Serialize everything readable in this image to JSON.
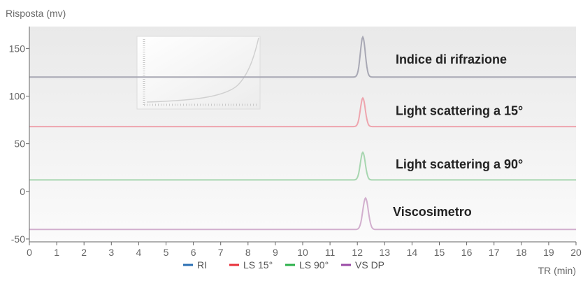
{
  "chart_data": {
    "type": "line",
    "title": "",
    "ylabel": "Risposta (mv)",
    "xlabel": "TR (min)",
    "xlim": [
      0,
      20
    ],
    "ylim": [
      -53,
      173
    ],
    "x_ticks": [
      0,
      1,
      2,
      3,
      4,
      5,
      6,
      7,
      8,
      9,
      10,
      11,
      12,
      13,
      14,
      15,
      16,
      17,
      18,
      19,
      20
    ],
    "y_ticks": [
      -50,
      0,
      50,
      100,
      150
    ],
    "series": [
      {
        "name": "RI",
        "color": "#2a6fb3",
        "trace_color": "#a8a8b4",
        "baseline": 120,
        "peak_x": 12.2,
        "peak_height": 42,
        "peak_width": 0.09
      },
      {
        "name": "LS 15°",
        "color": "#e8303a",
        "trace_color": "#eea5ae",
        "baseline": 68,
        "peak_x": 12.2,
        "peak_height": 30,
        "peak_width": 0.09
      },
      {
        "name": "LS 90°",
        "color": "#2bb14a",
        "trace_color": "#a7d6b0",
        "baseline": 12,
        "peak_x": 12.2,
        "peak_height": 29,
        "peak_width": 0.09
      },
      {
        "name": "VS DP",
        "color": "#9a4aa6",
        "trace_color": "#d2afce",
        "baseline": -40,
        "peak_x": 12.3,
        "peak_height": 33,
        "peak_width": 0.1
      }
    ],
    "annotations": [
      {
        "text": "Indice di rifrazione",
        "x": 13.4,
        "y": 134
      },
      {
        "text": "Light scattering a 15°",
        "x": 13.4,
        "y": 80
      },
      {
        "text": "Light scattering a 90°",
        "x": 13.4,
        "y": 24
      },
      {
        "text": "Viscosimetro",
        "x": 13.3,
        "y": -26
      }
    ],
    "grid": false,
    "legend_position": "bottom-center"
  }
}
